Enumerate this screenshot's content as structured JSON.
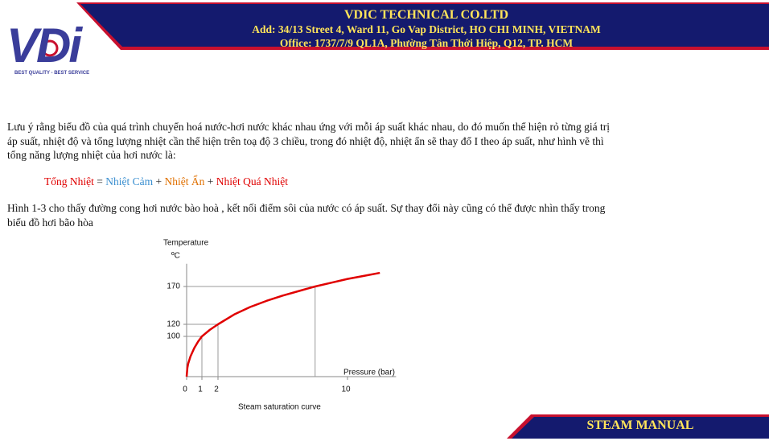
{
  "header": {
    "company": "VDIC TECHNICAL CO.LTD",
    "address": "Add: 34/13 Street 4, Ward 11, Go Vap District, HO CHI MINH, VIETNAM",
    "office": "Office: 1737/7/9 QL1A, Phường Tân Thới Hiệp, Q12, TP. HCM"
  },
  "logo": {
    "mark": "VDi",
    "slogan": "BEST QUALITY - BEST SERVICE"
  },
  "paragraph1": [
    "Lưu ý rằng biểu đồ của quá trình chuyển hoá nước-hơi nước khác nhau ứng với mỗi áp suất khác nhau, do đó muốn thể hiện rỏ từng giá trị",
    "áp suất, nhiệt độ và tổng lượng nhiệt cần thể hiện trên toạ độ 3 chiều, trong đó nhiệt độ, nhiệt ẩn sẽ thay đổ I theo áp suất, như hình vẽ thì",
    "tổng năng lượng nhiệt của hơi nước là:"
  ],
  "formula": [
    {
      "text": "Tổng Nhiệt",
      "color": "#e00000"
    },
    {
      "text": "=",
      "color": "#222222"
    },
    {
      "text": "Nhiệt Cảm",
      "color": "#3a8fd0"
    },
    {
      "text": "+",
      "color": "#222222"
    },
    {
      "text": "Nhiệt Ẩn",
      "color": "#e07000"
    },
    {
      "text": "+",
      "color": "#222222"
    },
    {
      "text": "Nhiệt Quá Nhiệt",
      "color": "#e00000"
    }
  ],
  "paragraph2": [
    "Hình 1-3 cho thấy đường cong hơi nước bào hoà , kết nối điểm sôi của nước có áp suất. Sự thay đổi này cũng có thể được nhìn thấy trong",
    "biểu đồ hơi bão hòa"
  ],
  "chart_data": {
    "type": "line",
    "y_label": "Temperature",
    "y_unit": "ºC",
    "x_label": "Pressure (bar)",
    "caption": "Steam saturation curve",
    "x": [
      0,
      0.05,
      0.1,
      0.25,
      0.5,
      0.75,
      1,
      1.5,
      2,
      3,
      4,
      5,
      6,
      7,
      8,
      9,
      10,
      11,
      12
    ],
    "values": [
      0,
      22,
      32,
      50,
      71,
      87,
      100,
      111,
      120,
      133,
      143,
      151,
      158,
      164,
      170,
      175,
      180,
      184,
      188
    ],
    "color": "#e00000",
    "xlim": [
      0,
      13
    ],
    "ylim": [
      0,
      200
    ],
    "xticks": [
      0,
      1,
      2,
      10
    ],
    "yticks": [
      100,
      120,
      170
    ]
  },
  "footer": {
    "title": "STEAM MANUAL"
  }
}
